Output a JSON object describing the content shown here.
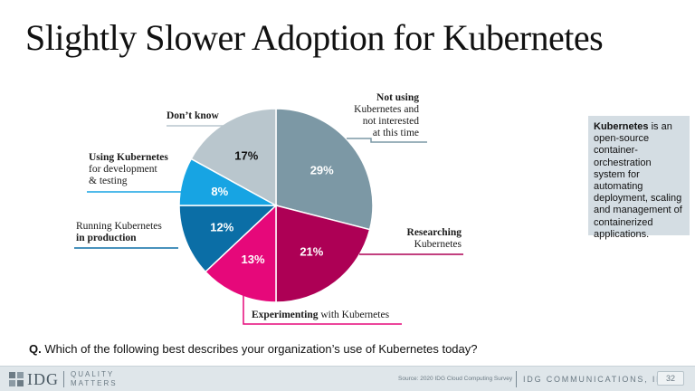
{
  "title": "Slightly Slower Adoption for Kubernetes",
  "chart_data": {
    "type": "pie",
    "title": "",
    "slices": [
      {
        "label": "Not using Kubernetes and not interested at this time",
        "value": 29,
        "display": "29%",
        "color": "#7c98a5"
      },
      {
        "label": "Researching Kubernetes",
        "value": 21,
        "display": "21%",
        "color": "#ad0055"
      },
      {
        "label": "Experimenting with Kubernetes",
        "value": 13,
        "display": "13%",
        "color": "#e6087a"
      },
      {
        "label": "Running Kubernetes in production",
        "value": 12,
        "display": "12%",
        "color": "#0b6ea6"
      },
      {
        "label": "Using Kubernetes for development & testing",
        "value": 8,
        "display": "8%",
        "color": "#17a4e3"
      },
      {
        "label": "Don't know",
        "value": 17,
        "display": "17%",
        "color": "#b9c6cd"
      }
    ]
  },
  "categories": {
    "not_using_bold": "Not using",
    "not_using_rest1": "Kubernetes and",
    "not_using_rest2": "not interested",
    "not_using_rest3": "at this time",
    "researching_bold": "Researching",
    "researching_rest": "Kubernetes",
    "experimenting_bold": "Experimenting",
    "experimenting_rest": " with Kubernetes",
    "running_line1": "Running Kubernetes",
    "running_bold": "in production",
    "dev_bold": "Using Kubernetes",
    "dev_rest1": "for development",
    "dev_rest2": "& testing",
    "dont_know_bold": "Don’t know"
  },
  "infobox": {
    "bold": "Kubernetes",
    "text": " is an open-source container-orchestration system for automating deployment, scaling and management of containerized applications."
  },
  "question": {
    "bold": "Q.",
    "text": " Which of the following best describes your organization’s use of Kubernetes today?"
  },
  "footer": {
    "logo": "IDG",
    "tagline_line1": "QUALITY",
    "tagline_line2": "MATTERS",
    "source": "Source: 2020 IDG Cloud Computing Survey",
    "company": "IDG COMMUNICATIONS, INC.",
    "page": "32"
  },
  "colors": {
    "leader_line": "#8aa2ae"
  }
}
